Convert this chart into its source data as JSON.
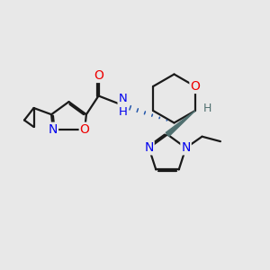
{
  "bg_color": "#e8e8e8",
  "bond_color": "#1a1a1a",
  "bond_width": 1.6,
  "dbo": 0.055,
  "atom_colors": {
    "N": "#0000ee",
    "O": "#ee0000",
    "H_stereo": "#507070"
  },
  "font_size": 10.0,
  "wedge_color": "#507070"
}
